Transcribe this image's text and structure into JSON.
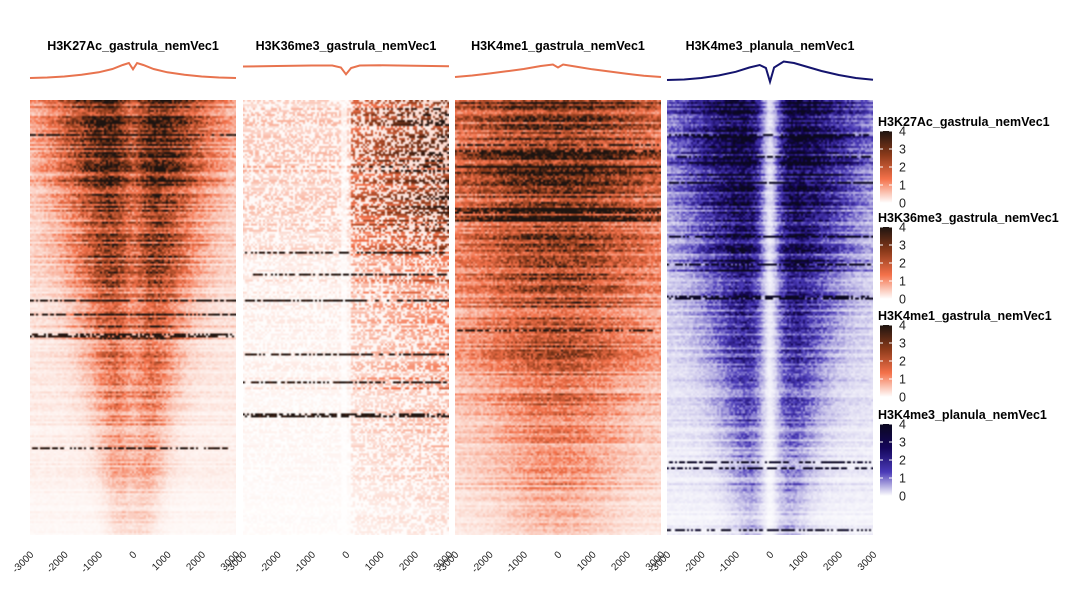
{
  "chart_data": {
    "type": "heatmap",
    "description": "Profile heatmaps of histone-mark signal around TSS (-3000..3000 bp), each with a mean profile on top",
    "x_ticks": [
      "-3000",
      "-2000",
      "-1000",
      "0",
      "1000",
      "2000",
      "3000"
    ],
    "xlim": [
      -3000,
      3000
    ],
    "panels": [
      {
        "title": "H3K27Ac_gastrula_nemVec1",
        "colors": [
          "#ffffff",
          "#f4714a",
          "#8b3a1a",
          "#1e1410"
        ],
        "profile_color": "#e8734e",
        "profile": [
          [
            -3000,
            0.2
          ],
          [
            -2500,
            0.22
          ],
          [
            -2000,
            0.26
          ],
          [
            -1500,
            0.33
          ],
          [
            -1000,
            0.43
          ],
          [
            -600,
            0.56
          ],
          [
            -300,
            0.72
          ],
          [
            -120,
            0.8
          ],
          [
            0,
            0.55
          ],
          [
            120,
            0.8
          ],
          [
            300,
            0.72
          ],
          [
            600,
            0.56
          ],
          [
            1000,
            0.43
          ],
          [
            1500,
            0.33
          ],
          [
            2000,
            0.26
          ],
          [
            2500,
            0.22
          ],
          [
            3000,
            0.2
          ]
        ]
      },
      {
        "title": "H3K36me3_gastrula_nemVec1",
        "colors": [
          "#ffffff",
          "#f4714a",
          "#8b3a1a",
          "#1e1410"
        ],
        "profile_color": "#e8734e",
        "profile": [
          [
            -3000,
            0.66
          ],
          [
            -2000,
            0.68
          ],
          [
            -1000,
            0.7
          ],
          [
            -400,
            0.7
          ],
          [
            -150,
            0.62
          ],
          [
            0,
            0.35
          ],
          [
            150,
            0.6
          ],
          [
            400,
            0.7
          ],
          [
            1000,
            0.71
          ],
          [
            2000,
            0.69
          ],
          [
            3000,
            0.67
          ]
        ]
      },
      {
        "title": "H3K4me1_gastrula_nemVec1",
        "colors": [
          "#ffffff",
          "#f4714a",
          "#8b3a1a",
          "#1e1410"
        ],
        "profile_color": "#e8734e",
        "profile": [
          [
            -3000,
            0.24
          ],
          [
            -2500,
            0.3
          ],
          [
            -2000,
            0.38
          ],
          [
            -1500,
            0.47
          ],
          [
            -1000,
            0.56
          ],
          [
            -500,
            0.68
          ],
          [
            -150,
            0.74
          ],
          [
            0,
            0.62
          ],
          [
            150,
            0.74
          ],
          [
            500,
            0.66
          ],
          [
            1000,
            0.55
          ],
          [
            1500,
            0.46
          ],
          [
            2000,
            0.37
          ],
          [
            2500,
            0.29
          ],
          [
            3000,
            0.24
          ]
        ]
      },
      {
        "title": "H3K4me3_planula_nemVec1",
        "colors": [
          "#ffffff",
          "#4a3ab8",
          "#14065a",
          "#0b0820"
        ],
        "profile_color": "#14146e",
        "profile": [
          [
            -3000,
            0.12
          ],
          [
            -2500,
            0.14
          ],
          [
            -2000,
            0.2
          ],
          [
            -1500,
            0.3
          ],
          [
            -1000,
            0.45
          ],
          [
            -600,
            0.62
          ],
          [
            -300,
            0.72
          ],
          [
            -120,
            0.6
          ],
          [
            0,
            0.05
          ],
          [
            120,
            0.62
          ],
          [
            400,
            0.86
          ],
          [
            700,
            0.8
          ],
          [
            1000,
            0.68
          ],
          [
            1500,
            0.48
          ],
          [
            2000,
            0.32
          ],
          [
            2500,
            0.2
          ],
          [
            3000,
            0.13
          ]
        ]
      }
    ],
    "legend": [
      {
        "title": "H3K27Ac_gastrula_nemVec1",
        "ticks": [
          "4",
          "3",
          "2",
          "1",
          "0"
        ],
        "min": 0,
        "max": 4
      },
      {
        "title": "H3K36me3_gastrula_nemVec1",
        "ticks": [
          "4",
          "3",
          "2",
          "1",
          "0"
        ],
        "min": 0,
        "max": 4
      },
      {
        "title": "H3K4me1_gastrula_nemVec1",
        "ticks": [
          "4",
          "3",
          "2",
          "1",
          "0"
        ],
        "min": 0,
        "max": 4
      },
      {
        "title": "H3K4me3_planula_nemVec1",
        "ticks": [
          "4",
          "3",
          "2",
          "1",
          "0"
        ],
        "min": 0,
        "max": 4
      }
    ],
    "legend_placement": "right"
  }
}
